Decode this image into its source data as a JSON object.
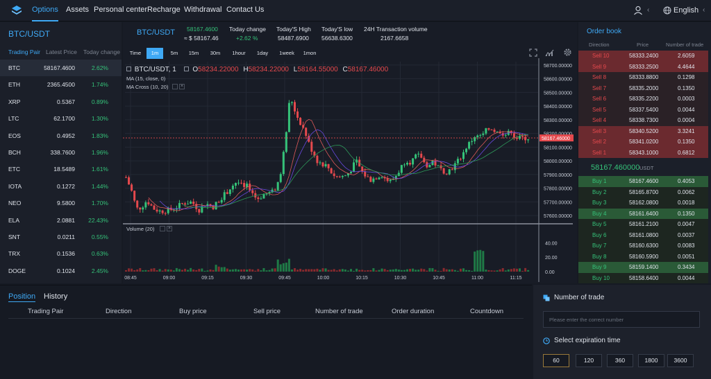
{
  "nav": {
    "items": [
      "Options",
      "Assets",
      "Personal center",
      "Recharge",
      "Withdrawal",
      "Contact Us"
    ],
    "active_index": 0,
    "language": "English"
  },
  "pairs": {
    "title": "BTC/USDT",
    "headers": [
      "Trading Pair",
      "Latest Price",
      "Today change"
    ],
    "rows": [
      {
        "pair": "BTC",
        "price": "58167.4600",
        "change": "2.62%"
      },
      {
        "pair": "ETH",
        "price": "2365.4500",
        "change": "1.74%"
      },
      {
        "pair": "XRP",
        "price": "0.5367",
        "change": "0.89%"
      },
      {
        "pair": "LTC",
        "price": "62.1700",
        "change": "1.30%"
      },
      {
        "pair": "EOS",
        "price": "0.4952",
        "change": "1.83%"
      },
      {
        "pair": "BCH",
        "price": "338.7600",
        "change": "1.96%"
      },
      {
        "pair": "ETC",
        "price": "18.5489",
        "change": "1.61%"
      },
      {
        "pair": "IOTA",
        "price": "0.1272",
        "change": "1.44%"
      },
      {
        "pair": "NEO",
        "price": "9.5800",
        "change": "1.70%"
      },
      {
        "pair": "ELA",
        "price": "2.0881",
        "change": "22.43%"
      },
      {
        "pair": "SNT",
        "price": "0.0211",
        "change": "0.55%"
      },
      {
        "pair": "TRX",
        "price": "0.1536",
        "change": "0.63%"
      },
      {
        "pair": "DOGE",
        "price": "0.1024",
        "change": "2.45%"
      }
    ],
    "selected_index": 0
  },
  "ticker": {
    "pair": "BTC/USDT",
    "last": "58167.4600",
    "last_approx": "≈ $ 58167.46",
    "change_label": "Today change",
    "change_value": "+2.62 %",
    "high_label": "Today'S High",
    "high_value": "58487.6900",
    "low_label": "Today'S low",
    "low_value": "56638.6300",
    "volume_label": "24H Transaction volume",
    "volume_value": "2167.6658"
  },
  "timeframes": {
    "items": [
      "Time",
      "1m",
      "5m",
      "15m",
      "30m",
      "1hour",
      "1day",
      "1week",
      "1mon"
    ],
    "active_index": 1
  },
  "chart_legend": {
    "symbol": "BTC/USDT, 1",
    "o_label": "O",
    "o": "58234.22000",
    "h_label": "H",
    "h": "58234.22000",
    "l_label": "L",
    "l": "58164.55000",
    "c_label": "C",
    "c": "58167.46000",
    "ma": "MA (15, close, 0)",
    "ma_cross": "MA Cross (10, 20)",
    "volume": "Volume (20)"
  },
  "chart_data": {
    "type": "candlestick",
    "price_ticks": [
      "58700.00000",
      "58600.00000",
      "58500.00000",
      "58400.00000",
      "58300.00000",
      "58200.00000",
      "58100.00000",
      "58000.00000",
      "57900.00000",
      "57800.00000",
      "57700.00000",
      "57600.00000"
    ],
    "price_range": [
      57550,
      58725
    ],
    "last_price_label": "58167.46000",
    "volume_ticks": [
      "40.00",
      "20.00",
      "0.00"
    ],
    "volume_range": [
      0,
      50
    ],
    "time_ticks": [
      "08:45",
      "09:00",
      "09:15",
      "09:30",
      "09:45",
      "10:00",
      "10:15",
      "10:30",
      "10:45",
      "11:00",
      "11:15"
    ]
  },
  "orderbook": {
    "title": "Order book",
    "headers": [
      "Direction",
      "Price",
      "Number of trade"
    ],
    "sells": [
      {
        "dir": "Sell 10",
        "price": "58333.2400",
        "qty": "2.6059"
      },
      {
        "dir": "Sell 9",
        "price": "58333.2500",
        "qty": "4.4644"
      },
      {
        "dir": "Sell 8",
        "price": "58333.8800",
        "qty": "0.1298"
      },
      {
        "dir": "Sell 7",
        "price": "58335.2000",
        "qty": "0.1350"
      },
      {
        "dir": "Sell 6",
        "price": "58335.2200",
        "qty": "0.0003"
      },
      {
        "dir": "Sell 5",
        "price": "58337.5400",
        "qty": "0.0044"
      },
      {
        "dir": "Sell 4",
        "price": "58338.7300",
        "qty": "0.0004"
      },
      {
        "dir": "Sell 3",
        "price": "58340.5200",
        "qty": "3.3241"
      },
      {
        "dir": "Sell 2",
        "price": "58341.0200",
        "qty": "0.1350"
      },
      {
        "dir": "Sell 1",
        "price": "58343.1000",
        "qty": "0.6812"
      }
    ],
    "last": "58167.460000",
    "last_unit": "USDT",
    "buys": [
      {
        "dir": "Buy 1",
        "price": "58167.4600",
        "qty": "0.4053"
      },
      {
        "dir": "Buy 2",
        "price": "58165.8700",
        "qty": "0.0062"
      },
      {
        "dir": "Buy 3",
        "price": "58162.0800",
        "qty": "0.0018"
      },
      {
        "dir": "Buy 4",
        "price": "58161.6400",
        "qty": "0.1350"
      },
      {
        "dir": "Buy 5",
        "price": "58161.2100",
        "qty": "0.0047"
      },
      {
        "dir": "Buy 6",
        "price": "58161.0800",
        "qty": "0.0037"
      },
      {
        "dir": "Buy 7",
        "price": "58160.6300",
        "qty": "0.0083"
      },
      {
        "dir": "Buy 8",
        "price": "58160.5900",
        "qty": "0.0051"
      },
      {
        "dir": "Buy 9",
        "price": "58159.1400",
        "qty": "0.3434"
      },
      {
        "dir": "Buy 10",
        "price": "58158.6400",
        "qty": "0.0044"
      }
    ]
  },
  "positions": {
    "tab_position": "Position",
    "tab_history": "History",
    "headers": [
      "Trading Pair",
      "Direction",
      "Buy price",
      "Sell price",
      "Number of trade",
      "Order duration",
      "Countdown"
    ]
  },
  "order_form": {
    "number_label": "Number of trade",
    "number_placeholder": "Please enter the correct number",
    "expiration_label": "Select expiration time",
    "expirations": [
      "60",
      "120",
      "360",
      "1800",
      "3600"
    ],
    "selected_index": 0
  },
  "colors": {
    "accent": "#3fa9f5",
    "up": "#35c279",
    "down": "#e5494d"
  }
}
